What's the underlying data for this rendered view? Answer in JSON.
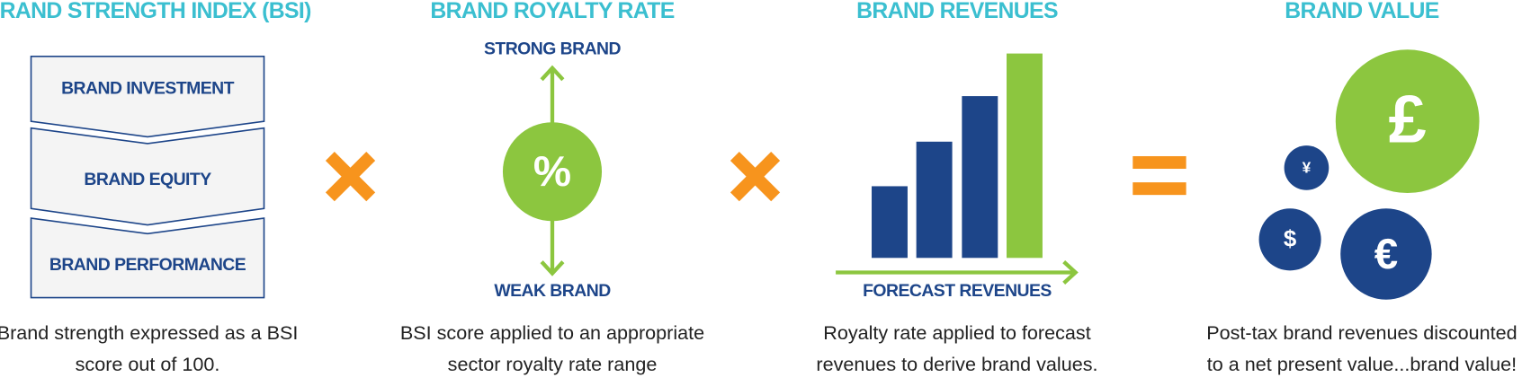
{
  "sections": [
    {
      "title": "BRAND STRENGTH INDEX (BSI)",
      "boxes": [
        "BRAND INVESTMENT",
        "BRAND EQUITY",
        "BRAND PERFORMANCE"
      ],
      "caption": [
        "Brand strength expressed as a BSI",
        "score out of 100."
      ]
    },
    {
      "title": "BRAND ROYALTY RATE",
      "top_label": "STRONG BRAND",
      "symbol": "%",
      "bottom_label": "WEAK BRAND",
      "caption": [
        "BSI score applied to an appropriate",
        "sector royalty rate range"
      ]
    },
    {
      "title": "BRAND REVENUES",
      "axis_label": "FORECAST REVENUES",
      "caption": [
        "Royalty rate applied to forecast",
        "revenues to derive brand values."
      ]
    },
    {
      "title": "BRAND VALUE",
      "symbols": [
        "£",
        "¥",
        "$",
        "€"
      ],
      "caption": [
        "Post-tax brand revenues discounted",
        "to a net present value...brand value!"
      ]
    }
  ]
}
